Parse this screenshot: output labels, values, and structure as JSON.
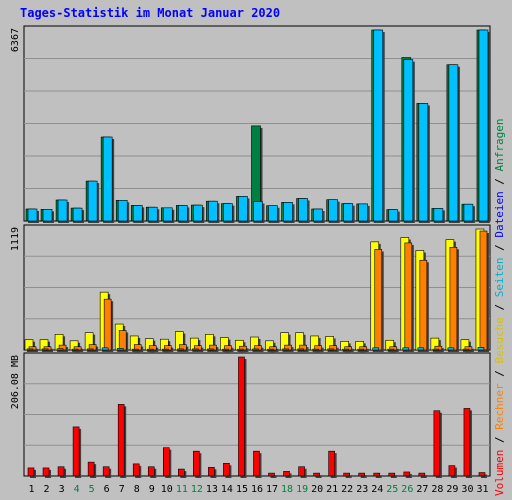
{
  "chart_data": {
    "type": "bar",
    "title": "Tages-Statistik im Monat Januar 2020",
    "categories": [
      "1",
      "2",
      "3",
      "4",
      "5",
      "6",
      "7",
      "8",
      "9",
      "10",
      "11",
      "12",
      "13",
      "14",
      "15",
      "16",
      "17",
      "18",
      "19",
      "20",
      "21",
      "22",
      "23",
      "24",
      "25",
      "26",
      "27",
      "28",
      "29",
      "30",
      "31"
    ],
    "weekend_days": [
      "4",
      "5",
      "11",
      "12",
      "18",
      "19",
      "25",
      "26"
    ],
    "panels": [
      {
        "id": "requests",
        "max_label": "6367",
        "ylim": [
          0,
          6367
        ],
        "series": [
          {
            "name": "Anfragen",
            "color": "#008040",
            "values": [
              400,
              390,
              700,
              430,
              1330,
              2800,
              690,
              520,
              460,
              440,
              520,
              530,
              660,
              580,
              820,
              3170,
              510,
              620,
              750,
              400,
              710,
              580,
              570,
              6367,
              380,
              5450,
              3920,
              420,
              5210,
              560,
              6367
            ]
          },
          {
            "name": "Dateien",
            "color": "#00c0ff",
            "values": [
              400,
              390,
              700,
              430,
              1330,
              2800,
              690,
              520,
              460,
              440,
              520,
              530,
              660,
              580,
              820,
              650,
              510,
              620,
              750,
              400,
              710,
              580,
              570,
              6367,
              380,
              5380,
              3920,
              420,
              5210,
              560,
              6367
            ]
          }
        ]
      },
      {
        "id": "visits",
        "max_label": "1119",
        "ylim": [
          0,
          1119
        ],
        "series": [
          {
            "name": "Seiten",
            "color": "#00c0ff",
            "values": [
              10,
              10,
              12,
              8,
              10,
              20,
              15,
              8,
              8,
              8,
              10,
              10,
              10,
              8,
              8,
              10,
              8,
              10,
              10,
              8,
              10,
              8,
              8,
              20,
              8,
              20,
              20,
              8,
              20,
              8,
              25
            ]
          },
          {
            "name": "Besuche",
            "color": "#ffff00",
            "values": [
              95,
              95,
              145,
              85,
              160,
              535,
              240,
              130,
              105,
              100,
              170,
              110,
              145,
              115,
              90,
              120,
              85,
              160,
              160,
              130,
              125,
              80,
              80,
              1000,
              90,
              1040,
              920,
              110,
              1020,
              95,
              1119
            ]
          },
          {
            "name": "Rechner",
            "color": "#ff8000",
            "values": [
              30,
              30,
              45,
              30,
              50,
              470,
              180,
              50,
              40,
              40,
              50,
              40,
              45,
              40,
              35,
              40,
              30,
              45,
              45,
              40,
              40,
              30,
              30,
              930,
              30,
              990,
              830,
              35,
              950,
              30,
              1100
            ]
          }
        ]
      },
      {
        "id": "volume",
        "max_label": "206.08 MB",
        "ylim": [
          0,
          206.08
        ],
        "series": [
          {
            "name": "Volumen",
            "color": "#ff0000",
            "values": [
              14,
              14,
              16,
              85,
              24,
              16,
              124,
              21,
              16,
              49,
              12,
              43,
              15,
              22,
              206.08,
              43,
              5,
              8,
              16,
              5,
              43,
              5,
              5,
              5,
              5,
              7,
              5,
              113,
              18,
              117,
              6
            ]
          }
        ]
      }
    ],
    "right_legend": [
      {
        "text": "Volumen",
        "color": "#ff0000"
      },
      {
        "text": " / ",
        "color": "#000000"
      },
      {
        "text": "Rechner",
        "color": "#ff8000"
      },
      {
        "text": " / ",
        "color": "#000000"
      },
      {
        "text": "Besuche",
        "color": "#d8c000"
      },
      {
        "text": " / ",
        "color": "#000000"
      },
      {
        "text": "Seiten",
        "color": "#00b0d0"
      },
      {
        "text": " / ",
        "color": "#000000"
      },
      {
        "text": "Dateien",
        "color": "#0000ff"
      },
      {
        "text": " / ",
        "color": "#000000"
      },
      {
        "text": "Anfragen",
        "color": "#008040"
      }
    ],
    "colors": {
      "background": "#c0c0c0",
      "grid": "#909090",
      "title": "#0000ff",
      "weekday_label": "#000000",
      "weekend_label": "#008040"
    }
  }
}
